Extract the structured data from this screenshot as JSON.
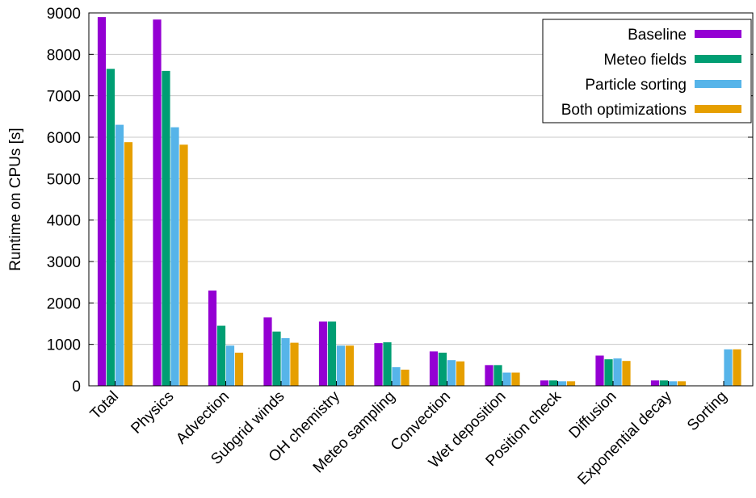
{
  "chart_data": {
    "type": "bar",
    "title": "",
    "xlabel": "",
    "ylabel": "Runtime on CPUs [s]",
    "ylim": [
      0,
      9000
    ],
    "yticks": [
      0,
      1000,
      2000,
      3000,
      4000,
      5000,
      6000,
      7000,
      8000,
      9000
    ],
    "grid": "horizontal",
    "legend_position": "top-right",
    "categories": [
      "Total",
      "Physics",
      "Advection",
      "Subgrid winds",
      "OH chemistry",
      "Meteo sampling",
      "Convection",
      "Wet deposition",
      "Position check",
      "Diffusion",
      "Exponential decay",
      "Sorting"
    ],
    "series": [
      {
        "name": "Baseline",
        "color": "#9400d3",
        "values": [
          8900,
          8840,
          2300,
          1650,
          1550,
          1030,
          830,
          500,
          130,
          730,
          130,
          0
        ]
      },
      {
        "name": "Meteo fields",
        "color": "#009e73",
        "values": [
          7650,
          7600,
          1450,
          1310,
          1550,
          1050,
          800,
          500,
          130,
          640,
          130,
          0
        ]
      },
      {
        "name": "Particle sorting",
        "color": "#56b4e9",
        "values": [
          6300,
          6240,
          970,
          1150,
          970,
          450,
          620,
          320,
          110,
          660,
          110,
          880
        ]
      },
      {
        "name": "Both optimizations",
        "color": "#e69f00",
        "values": [
          5880,
          5820,
          800,
          1040,
          970,
          390,
          590,
          320,
          110,
          600,
          110,
          880
        ]
      }
    ]
  }
}
